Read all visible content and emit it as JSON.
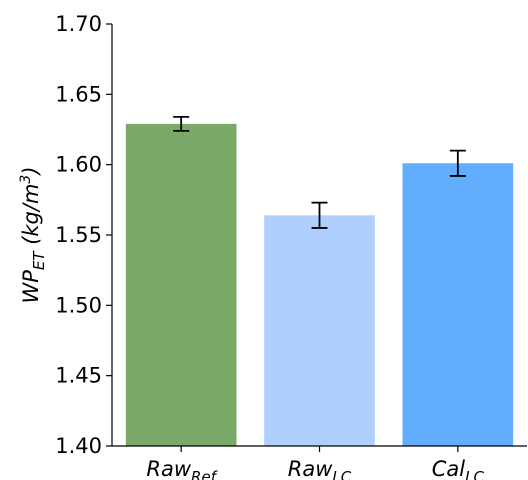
{
  "chart_data": {
    "type": "bar",
    "categories": [
      {
        "base": "Raw",
        "sub": "Ref"
      },
      {
        "base": "Raw",
        "sub": "LC"
      },
      {
        "base": "Cal",
        "sub": "LC"
      }
    ],
    "values": [
      1.629,
      1.564,
      1.601
    ],
    "errors": [
      0.005,
      0.009,
      0.009
    ],
    "colors": [
      "#7aa96a",
      "#afd0ff",
      "#63adff"
    ],
    "ylabel": {
      "main": "WP",
      "sub": "ET",
      "pre_unit": " (kg/m",
      "sup": "3",
      "post_unit": ")"
    },
    "ylim": [
      1.4,
      1.7
    ],
    "yticks": [
      "1.40",
      "1.45",
      "1.50",
      "1.55",
      "1.60",
      "1.65",
      "1.70"
    ],
    "grid": false
  }
}
